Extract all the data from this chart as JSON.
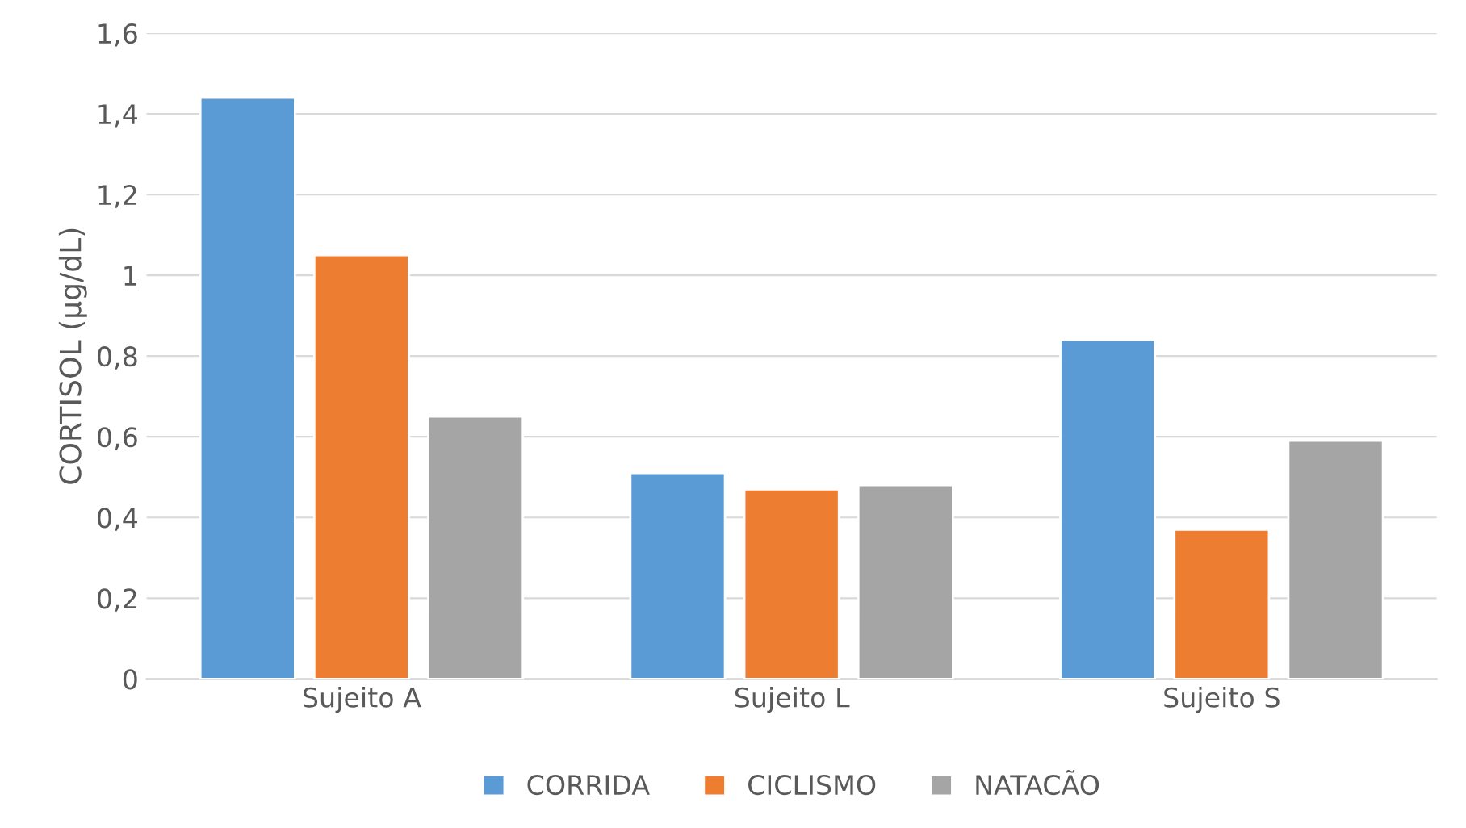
{
  "chart_data": {
    "type": "bar",
    "ylabel": "CORTISOL (µg/dL)",
    "categories": [
      "Sujeito A",
      "Sujeito L",
      "Sujeito S"
    ],
    "series": [
      {
        "name": "CORRIDA",
        "color": "#5b9bd5",
        "values": [
          1.44,
          0.51,
          0.84
        ]
      },
      {
        "name": "CICLISMO",
        "color": "#ed7d31",
        "values": [
          1.05,
          0.47,
          0.37
        ]
      },
      {
        "name": "NATACÃO",
        "color": "#a5a5a5",
        "values": [
          0.65,
          0.48,
          0.59
        ]
      }
    ],
    "ylim": [
      0,
      1.6
    ],
    "yticks": [
      {
        "value": 0,
        "label": "0"
      },
      {
        "value": 0.2,
        "label": "0,2"
      },
      {
        "value": 0.4,
        "label": "0,4"
      },
      {
        "value": 0.6,
        "label": "0,6"
      },
      {
        "value": 0.8,
        "label": "0,8"
      },
      {
        "value": 1,
        "label": "1"
      },
      {
        "value": 1.2,
        "label": "1,2"
      },
      {
        "value": 1.4,
        "label": "1,4"
      },
      {
        "value": 1.6,
        "label": "1,6"
      }
    ],
    "grid": "y",
    "legend": "bottom"
  }
}
